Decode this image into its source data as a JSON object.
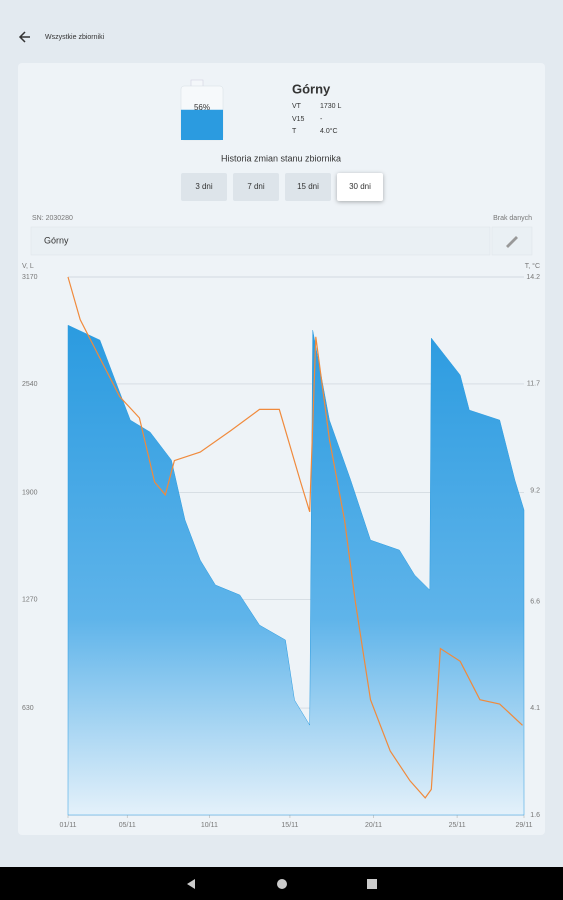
{
  "header": {
    "back_label": "Wszystkie zbiorniki"
  },
  "tank": {
    "name": "Górny",
    "fill": 56,
    "fill_label": "56%",
    "stats": [
      {
        "label": "VT",
        "value": "1730 L"
      },
      {
        "label": "V15",
        "value": "-"
      },
      {
        "label": "T",
        "value": "4.0°C"
      }
    ]
  },
  "history_title": "Historia zmian stanu zbiornika",
  "tabs": [
    {
      "label": "3 dni"
    },
    {
      "label": "7 dni"
    },
    {
      "label": "15 dni"
    },
    {
      "label": "30 dni",
      "selected": true
    }
  ],
  "sn_label": "SN: 2030280",
  "no_data_label": "Brak danych",
  "name_field": "Górny",
  "chart_data": {
    "type": "area",
    "ylabel": "V, L",
    "y2label": "T, °C",
    "xlim": [
      0,
      30
    ],
    "xticks": [
      {
        "value": 0,
        "label": "01/11"
      },
      {
        "value": 3.9,
        "label": "05/11"
      },
      {
        "value": 9.3,
        "label": "10/11"
      },
      {
        "value": 14.6,
        "label": "15/11"
      },
      {
        "value": 20.1,
        "label": "20/11"
      },
      {
        "value": 25.6,
        "label": "25/11"
      },
      {
        "value": 30,
        "label": "29/11"
      }
    ],
    "ylim": [
      0,
      3170
    ],
    "yticks": [
      630,
      1270,
      1900,
      2540,
      3170
    ],
    "y2lim": [
      1.6,
      14.2
    ],
    "y2ticks": [
      1.6,
      4.1,
      6.6,
      9.2,
      11.7,
      14.2
    ],
    "grid": true,
    "series": [
      {
        "color": "#2b9be0",
        "x": [
          0,
          2.1,
          3.1,
          4.1,
          5.4,
          6.8,
          7.7,
          8.7,
          9.7,
          11.3,
          12.6,
          14.3,
          14.9,
          15.9,
          16.1,
          17.2,
          18.6,
          19.9,
          21.8,
          22.8,
          23.8,
          23.9,
          25.8,
          26.4,
          28.4,
          29.4,
          30
        ],
        "values": [
          2886,
          2798,
          2562,
          2327,
          2256,
          2091,
          1738,
          1502,
          1355,
          1296,
          1119,
          1031,
          677,
          530,
          2857,
          2327,
          1973,
          1620,
          1561,
          1414,
          1325,
          2810,
          2592,
          2386,
          2327,
          1973,
          1797
        ]
      },
      {
        "color": "#f08a3c",
        "axis": "y2",
        "x": [
          0,
          0.8,
          2.1,
          3.4,
          4.7,
          5.7,
          6.4,
          7.0,
          8.7,
          10.7,
          12.6,
          13.9,
          15.3,
          15.9,
          16.3,
          17.2,
          18.2,
          18.9,
          19.9,
          21.2,
          22.5,
          23.5,
          23.9,
          24.5,
          25.8,
          27.1,
          28.4,
          29.9
        ],
        "values": [
          14.2,
          13.2,
          12.3,
          11.4,
          10.9,
          9.4,
          9.1,
          9.9,
          10.1,
          10.6,
          11.1,
          11.1,
          9.4,
          8.7,
          12.8,
          10.4,
          8.5,
          6.6,
          4.3,
          3.1,
          2.4,
          2.0,
          2.2,
          5.5,
          5.2,
          4.3,
          4.2,
          3.7
        ]
      }
    ]
  }
}
